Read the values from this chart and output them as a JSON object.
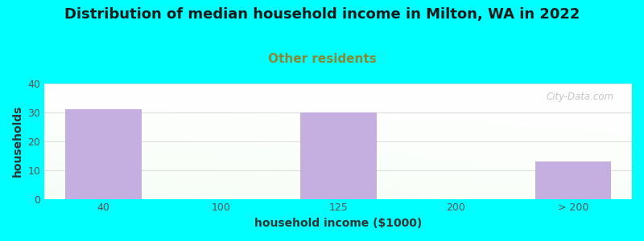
{
  "title": "Distribution of median household income in Milton, WA in 2022",
  "subtitle": "Other residents",
  "xlabel": "household income ($1000)",
  "ylabel": "households",
  "categories": [
    "40",
    "100",
    "125",
    "200",
    "> 200"
  ],
  "values": [
    31,
    0,
    30,
    0,
    13
  ],
  "bar_color": "#c5aee0",
  "bar_width": 0.65,
  "ylim": [
    0,
    40
  ],
  "yticks": [
    0,
    10,
    20,
    30,
    40
  ],
  "background_color": "#00ffff",
  "title_color": "#1a1a1a",
  "subtitle_color": "#888833",
  "axis_label_color": "#333333",
  "tick_color": "#555555",
  "grid_color": "#dddddd",
  "watermark_text": "City-Data.com",
  "title_fontsize": 13,
  "subtitle_fontsize": 11,
  "label_fontsize": 10,
  "tick_fontsize": 9
}
